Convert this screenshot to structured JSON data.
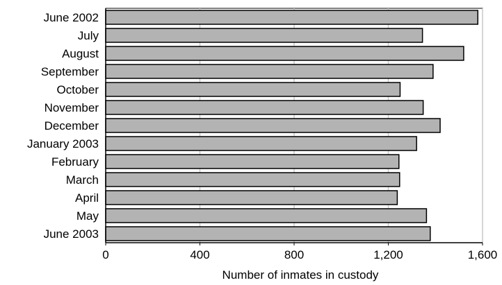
{
  "chart_data": {
    "type": "bar",
    "orientation": "horizontal",
    "categories": [
      "June 2002",
      "July",
      "August",
      "September",
      "October",
      "November",
      "December",
      "January 2003",
      "February",
      "March",
      "April",
      "May",
      "June 2003"
    ],
    "values": [
      1580,
      1345,
      1520,
      1390,
      1250,
      1348,
      1420,
      1320,
      1245,
      1248,
      1238,
      1362,
      1378
    ],
    "xlabel": "Number of inmates in custody",
    "ylabel": "",
    "title": "",
    "xlim": [
      0,
      1600
    ],
    "xticks": [
      0,
      400,
      800,
      1200,
      1600
    ],
    "xtick_labels": [
      "0",
      "400",
      "800",
      "1,200",
      "1,600"
    ],
    "grid": "vertical",
    "legend": "none",
    "colors": {
      "bar_fill": "#b3b3b3",
      "bar_stroke": "#000000",
      "grid": "#c8c8c8",
      "axis": "#000000"
    }
  }
}
